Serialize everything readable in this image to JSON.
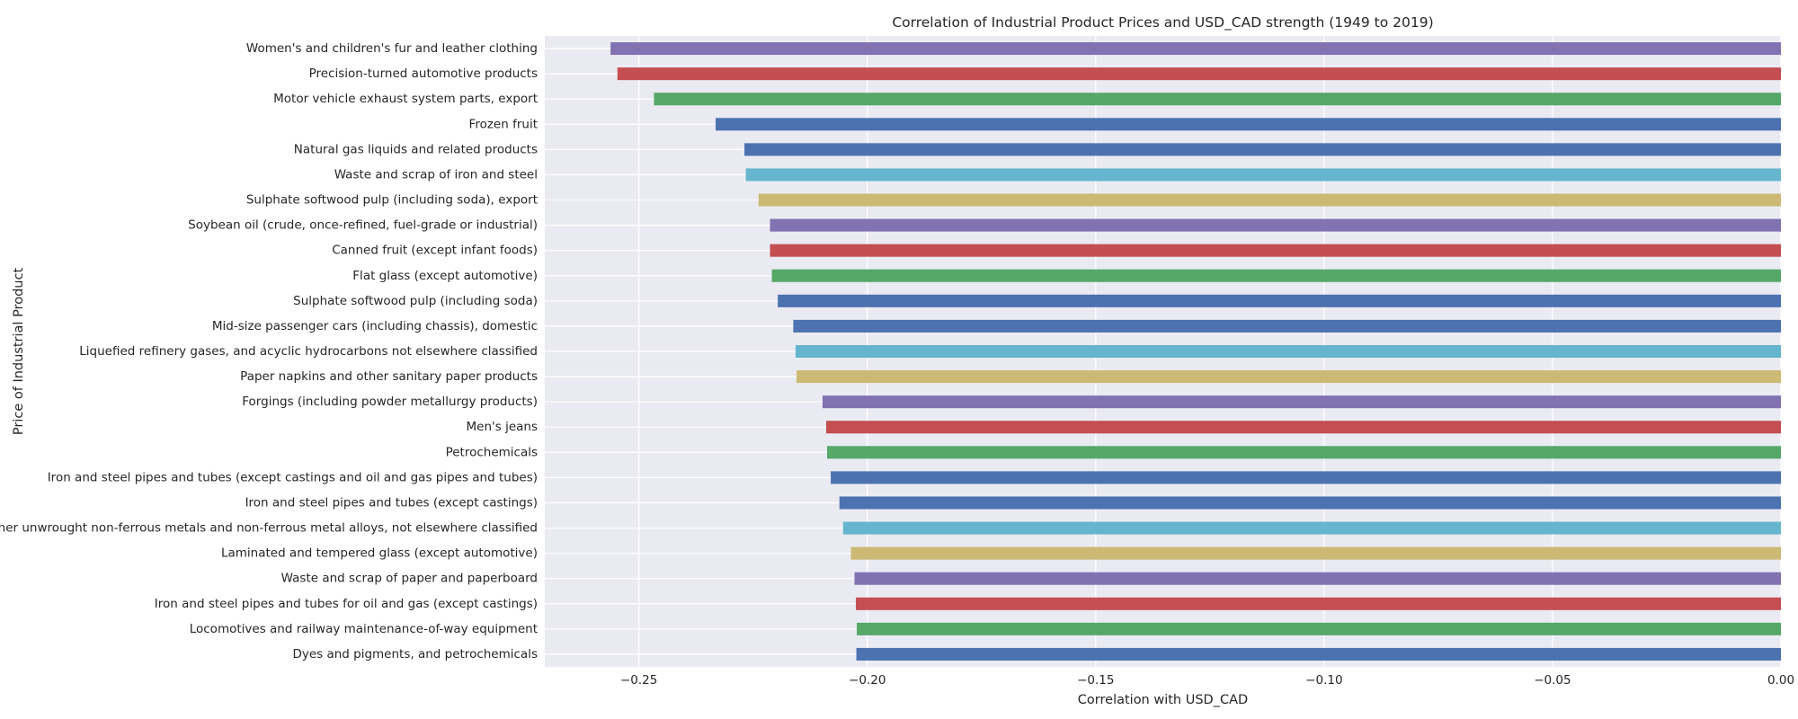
{
  "chart_data": {
    "type": "bar",
    "orientation": "horizontal",
    "title": "Correlation of Industrial Product Prices and USD_CAD strength (1949 to 2019)",
    "xlabel": "Correlation with USD_CAD",
    "ylabel": "Price of Industrial Product",
    "xlim": [
      -0.2706,
      0.0
    ],
    "xticks": [
      -0.25,
      -0.2,
      -0.15,
      -0.1,
      -0.05,
      0.0
    ],
    "xtick_labels": [
      "−0.25",
      "−0.20",
      "−0.15",
      "−0.10",
      "−0.05",
      "0.00"
    ],
    "grid": true,
    "categories": [
      "Women's and children's fur and leather clothing",
      "Precision-turned automotive products",
      "Motor vehicle exhaust system parts, export",
      "Frozen fruit",
      "Natural gas liquids and related products",
      "Waste and scrap of iron and steel",
      "Sulphate softwood pulp (including soda), export",
      "Soybean oil (crude, once-refined, fuel-grade or industrial)",
      "Canned fruit (except infant foods)",
      "Flat glass (except automotive)",
      "Sulphate softwood pulp (including soda)",
      "Mid-size passenger cars (including chassis), domestic",
      "Liquefied refinery gases, and acyclic hydrocarbons not elsewhere classified",
      "Paper napkins and other sanitary paper products",
      "Forgings (including powder metallurgy products)",
      "Men's jeans",
      "Petrochemicals",
      "Iron and steel pipes and tubes (except castings and oil and gas pipes and tubes)",
      "Iron and steel pipes and tubes (except castings)",
      "Other unwrought non-ferrous metals and non-ferrous metal alloys, not elsewhere classified",
      "Laminated and tempered glass (except automotive)",
      "Waste and scrap of paper and paperboard",
      "Iron and steel pipes and tubes for oil and gas (except castings)",
      "Locomotives and railway maintenance-of-way equipment",
      "Dyes and pigments, and petrochemicals"
    ],
    "values": [
      -0.2562,
      -0.2547,
      -0.2467,
      -0.2332,
      -0.2269,
      -0.2266,
      -0.2238,
      -0.2213,
      -0.2213,
      -0.2209,
      -0.2196,
      -0.2162,
      -0.2157,
      -0.2155,
      -0.2098,
      -0.209,
      -0.2088,
      -0.208,
      -0.2061,
      -0.2053,
      -0.2036,
      -0.2028,
      -0.2025,
      -0.2023,
      -0.2024
    ],
    "colors": [
      "#8172B2",
      "#C44E52",
      "#55A868",
      "#4C72B0",
      "#4C72B0",
      "#64B5CD",
      "#CCB974",
      "#8172B2",
      "#C44E52",
      "#55A868",
      "#4C72B0",
      "#4C72B0",
      "#64B5CD",
      "#CCB974",
      "#8172B2",
      "#C44E52",
      "#55A868",
      "#4C72B0",
      "#4C72B0",
      "#64B5CD",
      "#CCB974",
      "#8172B2",
      "#C44E52",
      "#55A868",
      "#4C72B0"
    ],
    "plot_background": "#EAEAF2",
    "grid_color": "#FFFFFF"
  }
}
